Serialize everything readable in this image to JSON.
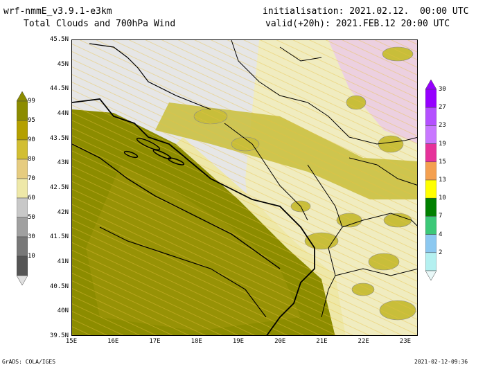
{
  "header": {
    "model": "wrf-nmmE_v3.9.1-e3km",
    "product": "Total Clouds and 700hPa Wind",
    "init_label": "initialisation: 2021.02.12.  00:00 UTC",
    "valid_label": "valid(+20h): 2021.FEB.12 20:00 UTC"
  },
  "map": {
    "lat_labels": [
      "45.5N",
      "45N",
      "44.5N",
      "44N",
      "43.5N",
      "43N",
      "42.5N",
      "42N",
      "41.5N",
      "41N",
      "40.5N",
      "40N",
      "39.5N"
    ],
    "lon_labels": [
      "15E",
      "16E",
      "17E",
      "18E",
      "19E",
      "20E",
      "21E",
      "22E",
      "23E"
    ],
    "lon_range": [
      15,
      23.3
    ],
    "lat_range": [
      39.5,
      45.5
    ]
  },
  "cloud_colorbar": {
    "labels": [
      "99",
      "95",
      "90",
      "80",
      "70",
      "60",
      "50",
      "30",
      "10"
    ],
    "colors": [
      "#8c8c00",
      "#b4a000",
      "#d2be32",
      "#e6cc80",
      "#eee8a8",
      "#c8c8c8",
      "#a0a0a0",
      "#787878",
      "#555555"
    ],
    "units": "%"
  },
  "wind_colorbar": {
    "labels": [
      "30",
      "27",
      "23",
      "19",
      "15",
      "13",
      "10",
      "7",
      "4",
      "2"
    ],
    "colors": [
      "#9600ff",
      "#b450ff",
      "#c878ff",
      "#e6329a",
      "#f4a050",
      "#ffff00",
      "#008000",
      "#3cc878",
      "#8cc8f0",
      "#b4f0f0"
    ]
  },
  "footer": {
    "credit": "GrADS: COLA/IGES",
    "timestamp": "2021-02-12-09:36"
  }
}
